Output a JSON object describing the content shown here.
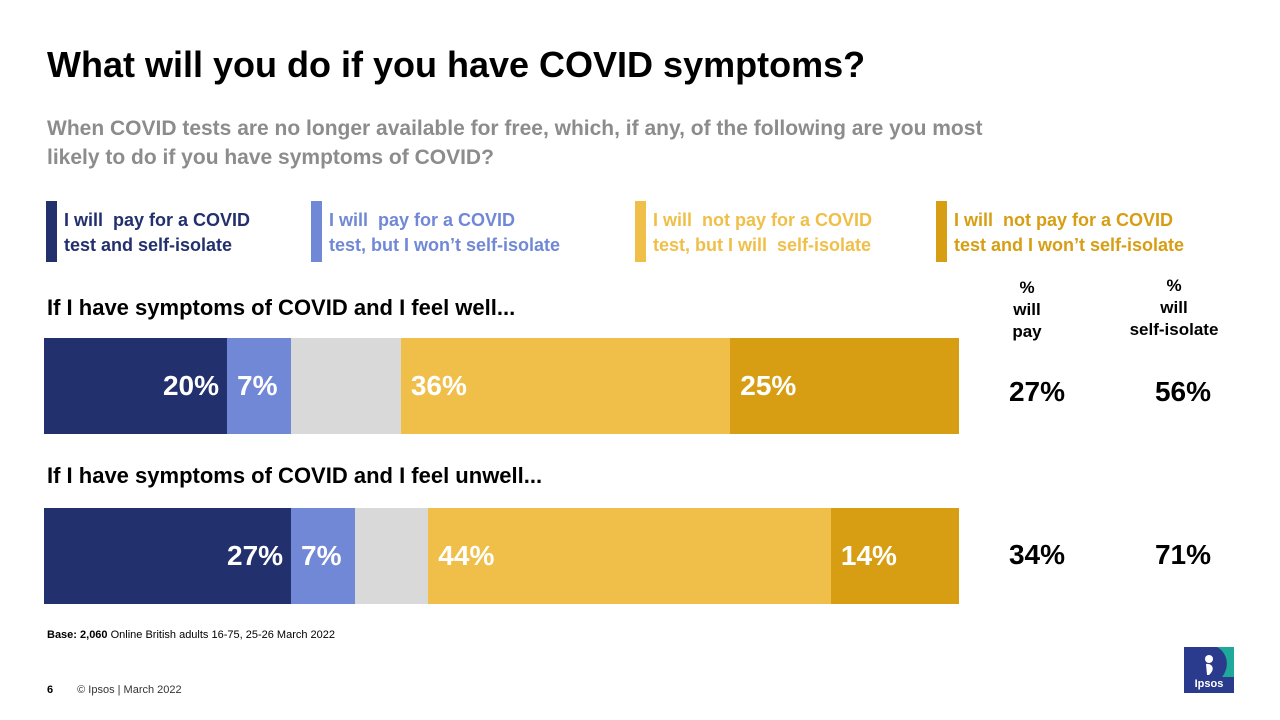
{
  "title": "What will you do if you have COVID symptoms?",
  "subtitle": "When COVID tests are no longer available for free, which, if any, of the following are you most likely to do if you have symptoms of COVID?",
  "legend": [
    {
      "label": "I will  pay for a COVID\ntest and self-isolate",
      "color": "#23306e",
      "text_color": "#23306e"
    },
    {
      "label": "I will  pay for a COVID\ntest, but I won’t self-isolate",
      "color": "#7088d6",
      "text_color": "#7088d6"
    },
    {
      "label": "I will  not pay for a COVID\ntest, but I will  self-isolate",
      "color": "#f0bf49",
      "text_color": "#f0bf49"
    },
    {
      "label": "I will  not pay for a COVID\ntest and I won’t self-isolate",
      "color": "#d79e14",
      "text_color": "#d79e14"
    }
  ],
  "column_headers": {
    "pay": "%\nwill\npay",
    "isolate": "%\nwill\nself-isolate"
  },
  "chart_data": {
    "type": "bar",
    "orientation": "horizontal-stacked",
    "categories": [
      "If I have symptoms of COVID and I feel well...",
      "If I have symptoms of COVID and I feel unwell..."
    ],
    "series": [
      {
        "name": "I will  pay for a COVID test and self-isolate",
        "values": [
          20,
          27
        ],
        "labels": [
          "20%",
          "27%"
        ],
        "color": "#23306e"
      },
      {
        "name": "I will  pay for a COVID test, but I won’t self-isolate",
        "values": [
          7,
          7
        ],
        "labels": [
          "7%",
          "7%"
        ],
        "color": "#7088d6"
      },
      {
        "values": [
          12,
          8
        ],
        "labels": [
          "",
          ""
        ],
        "color": "#d9d9d9"
      },
      {
        "name": "I will  not pay for a COVID test, but I will  self-isolate",
        "values": [
          36,
          44
        ],
        "labels": [
          "36%",
          "44%"
        ],
        "color": "#f0bf49"
      },
      {
        "name": "I will  not pay for a COVID test and I won’t self-isolate",
        "values": [
          25,
          14
        ],
        "labels": [
          "25%",
          "14%"
        ],
        "color": "#d79e14"
      }
    ],
    "summary": {
      "will_pay": [
        "27%",
        "34%"
      ],
      "will_self_isolate": [
        "56%",
        "71%"
      ]
    }
  },
  "base": {
    "label": "Base: 2,060",
    "text": " Online British adults 16-75, 25-26 March 2022"
  },
  "footer": {
    "page": "6",
    "copyright": "© Ipsos | March 2022"
  },
  "logo": {
    "text": "Ipsos",
    "color": "#2a3a8c",
    "accent": "#1fa99a"
  }
}
